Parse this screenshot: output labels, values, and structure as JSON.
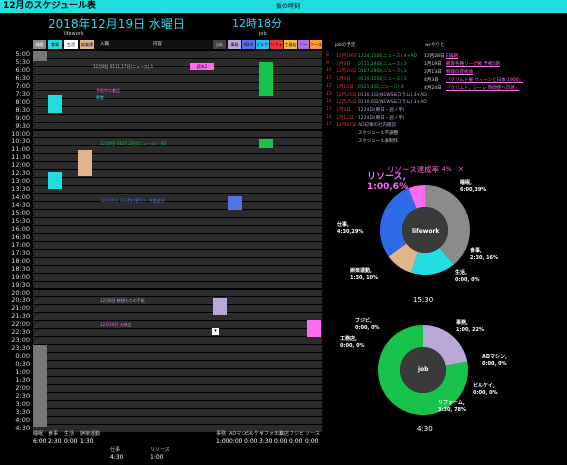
{
  "window": {
    "title": "12月のスケジュール表",
    "subtitle": "仮の時刻"
  },
  "header": {
    "date": "2018年12月19日 水曜日",
    "clock": "12時18分",
    "lifework_label": "lifework",
    "job_label": "job",
    "entry_label": "入職",
    "content_label": "内容"
  },
  "columns": [
    "睡眠",
    "食事",
    "生活",
    "娯楽運動",
    "",
    "",
    "",
    "",
    "",
    "",
    "Job",
    "事務",
    "ADマシン",
    "ビルケイ",
    "リフォーム",
    "工務店",
    "ソース"
  ],
  "times": [
    "5:00",
    "5:30",
    "6:00",
    "6:30",
    "7:00",
    "7:30",
    "8:00",
    "8:30",
    "9:00",
    "9:30",
    "10:00",
    "10:30",
    "11:00",
    "11:30",
    "12:00",
    "12:30",
    "13:00",
    "13:30",
    "14:00",
    "14:30",
    "15:00",
    "15:30",
    "16:00",
    "16:30",
    "17:00",
    "17:30",
    "18:00",
    "18:30",
    "19:00",
    "19:30",
    "20:00",
    "20:30",
    "21:00",
    "21:30",
    "22:00",
    "22:30",
    "23:00",
    "23:30",
    "0:00",
    "0:30",
    "1:00",
    "1:30",
    "2:00",
    "2:30",
    "3:00",
    "3:30",
    "4:00",
    "4:30"
  ],
  "rows": {
    "r1": "12月9日  0111,17日(ニュース).1",
    "r1b": "読本2",
    "r4": "予約中の着信",
    "r5": "朝食",
    "r10": "12月9日  0107,23日(ニュース)・AD",
    "r17": "12月31日  1224年(朝日)・年鑑返送",
    "r31": "12月8日  新規もりの手紙",
    "r34": "12月24日  大納言"
  },
  "jobs": {
    "title": "jobの予定",
    "items": [
      {
        "n": "8",
        "d": "12月19日",
        "t": "1224,13日(ニュース).4+AD"
      },
      {
        "n": "9",
        "d": "1月8日",
        "t": "0111,24日(ニュース).3"
      },
      {
        "n": "10",
        "d": "12月20日",
        "t": "0107,28日(ニュース).3"
      },
      {
        "n": "11",
        "d": "1月9日",
        "t": "0110,15日(ニュース).3"
      },
      {
        "n": "12",
        "d": "1月10日",
        "t": "0121,4日(ニュース).4"
      },
      {
        "n": "13",
        "d": "12月24日",
        "t": "0110,1日(NEWS&コラム).3+AD"
      },
      {
        "n": "14",
        "d": "12月25日",
        "t": "0110,6日(NEWS&コラム).3+AD"
      },
      {
        "n": "15",
        "d": "1月2日",
        "t": "1224日(朝日・週ノ平)"
      },
      {
        "n": "16",
        "d": "1月12日",
        "t": "1224日(朝日・週ノ平)"
      },
      {
        "n": "17",
        "d": "12月27日",
        "t": "AD記事の社内確認"
      },
      {
        "n": "",
        "d": "",
        "t": "スケジュール不調整"
      },
      {
        "n": "",
        "d": "",
        "t": "スケジュール表制作"
      }
    ]
  },
  "wc": {
    "title": "wcやりと",
    "items": [
      {
        "d": "12月28日",
        "t": "E論題"
      },
      {
        "d": "1月19日",
        "t": "観客各種リーグ戦 予戦5期"
      },
      {
        "d": "2月13日",
        "t": "物理の芸術論"
      },
      {
        "d": "4月3日",
        "t": "「グリムト展 ウィーンと日本 1900」"
      },
      {
        "d": "4月24日",
        "t": "「クリムト、シーレ 時間使への誘」"
      }
    ]
  },
  "donut1": {
    "title": "リソース達成率",
    "pct": "4%",
    "x": "×",
    "center": "lifework",
    "labels": {
      "sleep": "睡眠,\n6:00,39%",
      "meal": "食事,\n2:30, 16%",
      "life": "生活,\n0:00, 0%",
      "play": "娯楽運動,\n1:30, 10%",
      "work": "仕事,\n4:30,29%",
      "res": "リソース,\n1:00,6%"
    },
    "time": "15:30"
  },
  "chart_data": [
    {
      "type": "pie",
      "title": "lifework",
      "categories": [
        "睡眠",
        "食事",
        "生活",
        "娯楽運動",
        "仕事",
        "リソース"
      ],
      "values": [
        39,
        16,
        0,
        10,
        29,
        6
      ],
      "colors": [
        "#8a8a8a",
        "#23dde0",
        "#ffffff",
        "#e1b58c",
        "#2e6be6",
        "#ff6cf0"
      ]
    },
    {
      "type": "pie",
      "title": "job",
      "categories": [
        "事務",
        "ADマシン",
        "ビルケイ",
        "リフォーム",
        "工務店",
        "フジビ"
      ],
      "values": [
        22,
        0,
        0,
        78,
        0,
        0
      ],
      "colors": [
        "#b9a7d6",
        "#7b8bd0",
        "#5cb5ff",
        "#19c24a",
        "#e8d24a",
        "#ff9a3a"
      ]
    }
  ],
  "donut2": {
    "center": "job",
    "labels": {
      "office": "事務,\n1:00, 22%",
      "ad": "ADマシン,\n0:00, 0%",
      "bk": "ビルケイ,\n0:00, 0%",
      "reform": "リフォーム,\n3:30, 78%",
      "koumu": "工務店,\n0:00, 0%",
      "fuji": "フジビ,\n0:00, 0%"
    },
    "time": "4:30"
  },
  "footer": {
    "lw_labels": [
      "睡眠",
      "食事",
      "生活",
      "娯楽運動"
    ],
    "lw_values": [
      "6:00",
      "2:30",
      "0:00",
      "1:30"
    ],
    "lw2_labels": [
      "仕事",
      "",
      "リソース"
    ],
    "lw2_values": [
      "4:30",
      "",
      "1:00"
    ],
    "job_labels": [
      "事務",
      "ADマシン",
      "ビルケイ",
      "リフォーム",
      "工務店",
      "フジビ",
      "ソース"
    ],
    "job_values": [
      "1:00",
      "0:00",
      "0:00",
      "3:30",
      "0:00",
      "0:00",
      "0:00"
    ]
  }
}
